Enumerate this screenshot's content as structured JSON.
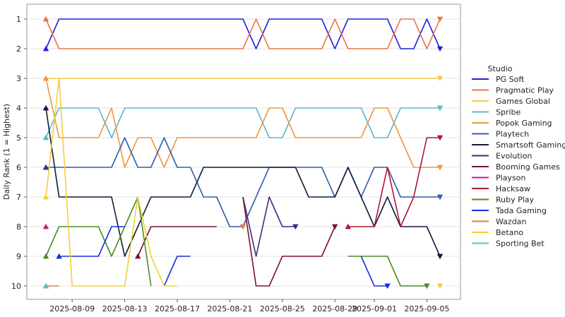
{
  "chart_data": {
    "type": "line",
    "ylabel": "Daily Rank (1 = Highest)",
    "y_ticks": [
      "1",
      "2",
      "3",
      "4",
      "5",
      "6",
      "7",
      "8",
      "9",
      "10"
    ],
    "ylim": [
      10.5,
      0.5
    ],
    "y_inverted": true,
    "x": [
      "2025-08-07",
      "2025-08-08",
      "2025-08-09",
      "2025-08-10",
      "2025-08-11",
      "2025-08-12",
      "2025-08-13",
      "2025-08-14",
      "2025-08-15",
      "2025-08-16",
      "2025-08-17",
      "2025-08-18",
      "2025-08-19",
      "2025-08-20",
      "2025-08-21",
      "2025-08-22",
      "2025-08-23",
      "2025-08-24",
      "2025-08-25",
      "2025-08-26",
      "2025-08-27",
      "2025-08-28",
      "2025-08-29",
      "2025-08-30",
      "2025-08-31",
      "2025-09-01",
      "2025-09-02",
      "2025-09-03",
      "2025-09-04",
      "2025-09-05",
      "2025-09-06"
    ],
    "x_ticks": [
      "2025-08-09",
      "2025-08-13",
      "2025-08-17",
      "2025-08-21",
      "2025-08-25",
      "2025-08-29",
      "2025-09-01",
      "2025-09-05"
    ],
    "grid": "horizontal",
    "legend": {
      "title": "Studio",
      "placement": "right"
    },
    "series": [
      {
        "name": "PG Soft",
        "color": "#1f23d6",
        "values": [
          2,
          1,
          1,
          1,
          1,
          1,
          1,
          1,
          1,
          1,
          1,
          1,
          1,
          1,
          1,
          1,
          2,
          1,
          1,
          1,
          1,
          1,
          2,
          1,
          1,
          1,
          1,
          2,
          2,
          1,
          2
        ]
      },
      {
        "name": "Pragmatic Play",
        "color": "#e8764a",
        "values": [
          1,
          2,
          2,
          2,
          2,
          2,
          2,
          2,
          2,
          2,
          2,
          2,
          2,
          2,
          2,
          2,
          1,
          2,
          2,
          2,
          2,
          2,
          1,
          2,
          2,
          2,
          2,
          1,
          1,
          2,
          1
        ]
      },
      {
        "name": "Games Global",
        "color": "#f1cc44",
        "values": [
          3,
          3,
          3,
          3,
          3,
          3,
          3,
          3,
          3,
          3,
          3,
          3,
          3,
          3,
          3,
          3,
          3,
          3,
          3,
          3,
          3,
          3,
          3,
          3,
          3,
          3,
          3,
          3,
          3,
          3,
          3
        ]
      },
      {
        "name": "Spribe",
        "color": "#5cb8c4",
        "values": [
          5,
          4,
          4,
          4,
          4,
          5,
          4,
          4,
          4,
          4,
          4,
          4,
          4,
          4,
          4,
          4,
          4,
          5,
          5,
          4,
          4,
          4,
          4,
          4,
          4,
          5,
          5,
          4,
          4,
          4,
          4
        ]
      },
      {
        "name": "Popok Gaming",
        "color": "#f0963c",
        "values": [
          3,
          5,
          5,
          5,
          5,
          4,
          6,
          5,
          5,
          6,
          5,
          5,
          5,
          5,
          5,
          5,
          5,
          4,
          4,
          5,
          5,
          5,
          5,
          5,
          5,
          4,
          4,
          5,
          6,
          6,
          6
        ]
      },
      {
        "name": "Playtech",
        "color": "#2f5ea8",
        "values": [
          6,
          6,
          6,
          6,
          6,
          6,
          5,
          6,
          6,
          5,
          6,
          6,
          7,
          7,
          8,
          8,
          7,
          6,
          6,
          6,
          6,
          6,
          7,
          6,
          7,
          6,
          6,
          7,
          7,
          7,
          7
        ]
      },
      {
        "name": "Smartsoft Gaming",
        "color": "#111a3a",
        "values": [
          4,
          7,
          7,
          7,
          7,
          7,
          9,
          8,
          7,
          7,
          7,
          7,
          6,
          6,
          6,
          6,
          6,
          6,
          6,
          6,
          7,
          7,
          7,
          6,
          7,
          8,
          7,
          8,
          8,
          8,
          9
        ]
      },
      {
        "name": "Evolution",
        "color": "#3a2a7a",
        "values": [
          6,
          null,
          null,
          null,
          null,
          null,
          null,
          null,
          null,
          null,
          null,
          null,
          null,
          null,
          null,
          7,
          9,
          7,
          8,
          8,
          null,
          null,
          null,
          null,
          null,
          null,
          null,
          null,
          null,
          null,
          null
        ]
      },
      {
        "name": "Booming Games",
        "color": "#7a1030",
        "values": [
          null,
          null,
          null,
          null,
          null,
          null,
          null,
          9,
          8,
          8,
          8,
          8,
          8,
          8,
          null,
          7,
          10,
          10,
          9,
          9,
          9,
          9,
          8,
          null,
          null,
          null,
          null,
          null,
          null,
          null,
          null
        ]
      },
      {
        "name": "Playson",
        "color": "#c8207a",
        "values": [
          8,
          null,
          null,
          null,
          null,
          null,
          null,
          null,
          null,
          null,
          null,
          null,
          null,
          null,
          null,
          null,
          null,
          null,
          null,
          null,
          null,
          null,
          null,
          null,
          null,
          null,
          null,
          null,
          null,
          null,
          null
        ]
      },
      {
        "name": "Hacksaw",
        "color": "#b01530",
        "values": [
          null,
          null,
          null,
          null,
          null,
          null,
          null,
          null,
          null,
          null,
          null,
          null,
          null,
          null,
          null,
          null,
          null,
          null,
          null,
          null,
          null,
          null,
          null,
          8,
          8,
          8,
          6,
          8,
          7,
          5,
          5
        ]
      },
      {
        "name": "Ruby Play",
        "color": "#4a8a2a",
        "values": [
          9,
          8,
          8,
          8,
          8,
          9,
          8,
          7,
          10,
          null,
          null,
          null,
          null,
          null,
          null,
          null,
          null,
          null,
          null,
          null,
          null,
          null,
          null,
          9,
          9,
          9,
          9,
          10,
          10,
          10,
          null
        ]
      },
      {
        "name": "Tada Gaming",
        "color": "#1a2ce0",
        "values": [
          null,
          9,
          9,
          9,
          9,
          8,
          8,
          null,
          null,
          10,
          9,
          9,
          null,
          null,
          null,
          null,
          null,
          null,
          null,
          null,
          null,
          null,
          null,
          null,
          9,
          10,
          10,
          null,
          null,
          null,
          null
        ]
      },
      {
        "name": "Wazdan",
        "color": "#e27a52",
        "values": [
          10,
          10,
          null,
          null,
          null,
          null,
          null,
          null,
          null,
          null,
          null,
          null,
          null,
          null,
          null,
          8,
          null,
          null,
          null,
          null,
          null,
          null,
          null,
          null,
          null,
          null,
          null,
          null,
          null,
          null,
          null
        ]
      },
      {
        "name": "Betano",
        "color": "#f3d03a",
        "values": [
          7,
          3,
          10,
          10,
          10,
          10,
          10,
          7,
          9,
          10,
          10,
          null,
          null,
          null,
          null,
          null,
          null,
          null,
          null,
          null,
          null,
          null,
          null,
          null,
          null,
          null,
          null,
          null,
          null,
          null,
          10
        ]
      },
      {
        "name": "Sporting Bet",
        "color": "#62bcc8",
        "values": [
          10,
          null,
          null,
          null,
          null,
          null,
          null,
          null,
          null,
          null,
          null,
          null,
          null,
          null,
          null,
          null,
          null,
          null,
          null,
          null,
          null,
          null,
          null,
          null,
          null,
          null,
          null,
          null,
          null,
          null,
          null
        ]
      }
    ]
  }
}
